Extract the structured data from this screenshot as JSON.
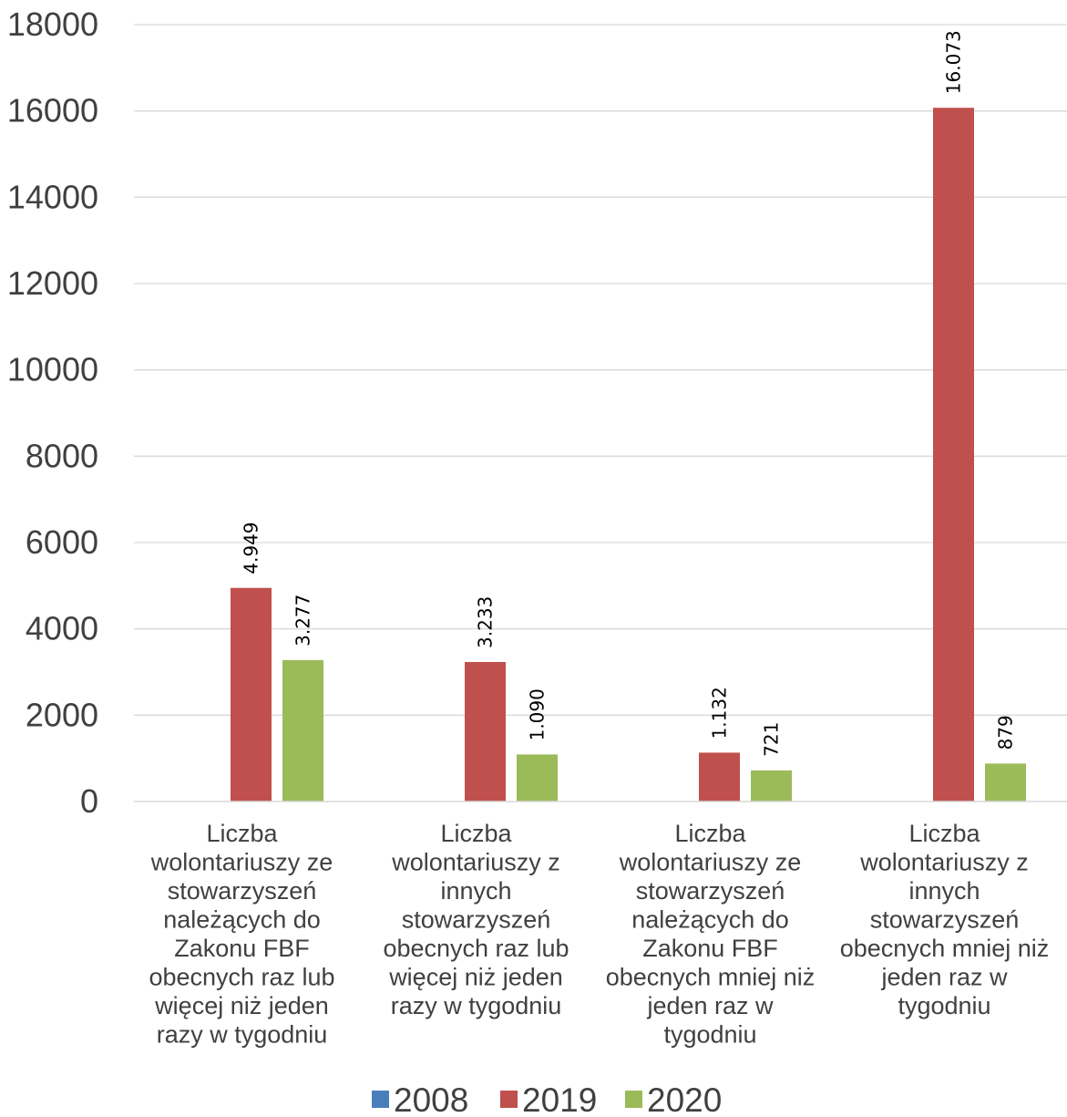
{
  "chart_data": {
    "type": "bar",
    "title": "",
    "xlabel": "",
    "ylabel": "",
    "ylim": [
      0,
      18000
    ],
    "yticks": [
      0,
      2000,
      4000,
      6000,
      8000,
      10000,
      12000,
      14000,
      16000,
      18000
    ],
    "grid": true,
    "legend_position": "bottom",
    "categories": [
      [
        "Liczba",
        "wolontariuszy ze",
        "stowarzyszeń",
        "należących do",
        "Zakonu FBF",
        "obecnych raz lub",
        "więcej niż jeden",
        "razy w tygodniu"
      ],
      [
        "Liczba",
        "wolontariuszy z",
        "innych",
        "stowarzyszeń",
        "obecnych raz lub",
        "więcej niż jeden",
        "razy w tygodniu"
      ],
      [
        "Liczba",
        "wolontariuszy ze",
        "stowarzyszeń",
        "należących do",
        "Zakonu FBF",
        "obecnych mniej niż",
        "jeden raz w",
        "tygodniu"
      ],
      [
        "Liczba",
        "wolontariuszy z",
        "innych",
        "stowarzyszeń",
        "obecnych mniej niż",
        "jeden raz w",
        "tygodniu"
      ]
    ],
    "series": [
      {
        "name": "2008",
        "color": "#4a7ebb",
        "values": [
          null,
          null,
          null,
          null
        ],
        "labels": [
          "",
          "",
          "",
          ""
        ]
      },
      {
        "name": "2019",
        "color": "#c0504d",
        "values": [
          4949,
          3233,
          1132,
          16073
        ],
        "labels": [
          "4.949",
          "3.233",
          "1.132",
          "16.073"
        ]
      },
      {
        "name": "2020",
        "color": "#9bbb59",
        "values": [
          3277,
          1090,
          721,
          879
        ],
        "labels": [
          "3.277",
          "1.090",
          "721",
          "879"
        ]
      }
    ]
  }
}
